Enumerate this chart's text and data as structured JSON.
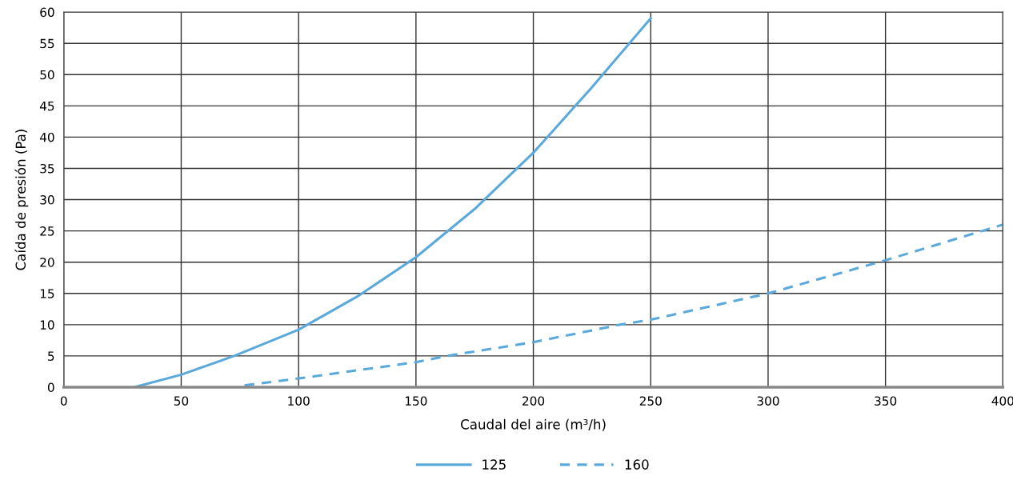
{
  "chart_data": {
    "type": "line",
    "xlabel": "Caudal del aire (m³/h)",
    "ylabel": "Caída de presión (Pa)",
    "xlim": [
      0,
      400
    ],
    "xticks": [
      0,
      50,
      100,
      150,
      200,
      250,
      300,
      350,
      400
    ],
    "ylim": [
      0,
      60
    ],
    "yticks": [
      0,
      5,
      10,
      15,
      20,
      25,
      30,
      35,
      40,
      45,
      50,
      55,
      60
    ],
    "grid": true,
    "legend": "bottom",
    "marker": "none",
    "series": [
      {
        "name": "125",
        "color": "#5aa9dd",
        "line_style": "solid",
        "x": [
          30,
          50,
          72.6,
          100,
          125,
          150,
          175,
          200,
          225,
          250
        ],
        "values": [
          0,
          2,
          5,
          9.2,
          14.5,
          20.8,
          28.5,
          37.5,
          48,
          59
        ]
      },
      {
        "name": "160",
        "color": "#5aa9dd",
        "line_style": "dashed",
        "x": [
          77,
          100,
          150,
          163,
          200,
          237,
          250,
          300,
          350,
          400
        ],
        "values": [
          0.3,
          1.4,
          4,
          5,
          7.2,
          10,
          10.8,
          15,
          20.3,
          26
        ]
      }
    ]
  }
}
